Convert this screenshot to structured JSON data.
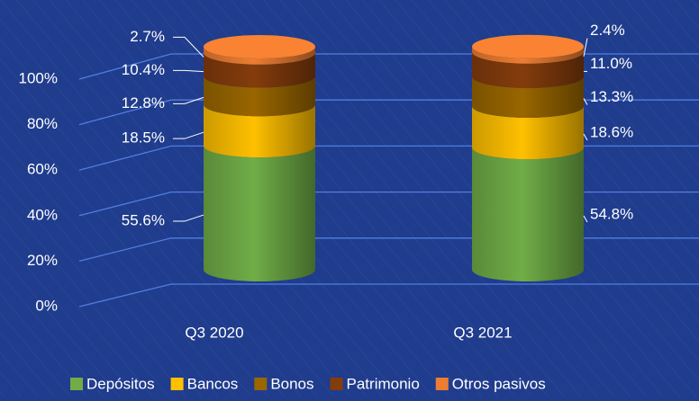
{
  "chart_data": {
    "type": "bar3d-stacked",
    "categories": [
      "Q3 2020",
      "Q3 2021"
    ],
    "series": [
      {
        "name": "Depósitos",
        "color": "#70ad47",
        "values": [
          55.6,
          54.8
        ],
        "value_labels": [
          "55.6%",
          "54.8%"
        ]
      },
      {
        "name": "Bancos",
        "color": "#ffc000",
        "values": [
          18.5,
          18.6
        ],
        "value_labels": [
          "18.5%",
          "18.6%"
        ]
      },
      {
        "name": "Bonos",
        "color": "#996600",
        "values": [
          12.8,
          13.3
        ],
        "value_labels": [
          "12.8%",
          "13.3%"
        ]
      },
      {
        "name": "Patrimonio",
        "color": "#843c0c",
        "values": [
          10.4,
          11.0
        ],
        "value_labels": [
          "10.4%",
          "11.0%"
        ]
      },
      {
        "name": "Otros pasivos",
        "color": "#ed7d31",
        "values": [
          2.7,
          2.4
        ],
        "value_labels": [
          "2.7%",
          "2.4%"
        ]
      }
    ],
    "ylim": [
      0,
      100
    ],
    "yticks": [
      {
        "value": 0,
        "label": "0%"
      },
      {
        "value": 20,
        "label": "20%"
      },
      {
        "value": 40,
        "label": "40%"
      },
      {
        "value": 60,
        "label": "60%"
      },
      {
        "value": 80,
        "label": "80%"
      },
      {
        "value": 100,
        "label": "100%"
      }
    ],
    "grid": true,
    "legend": "bottom"
  }
}
